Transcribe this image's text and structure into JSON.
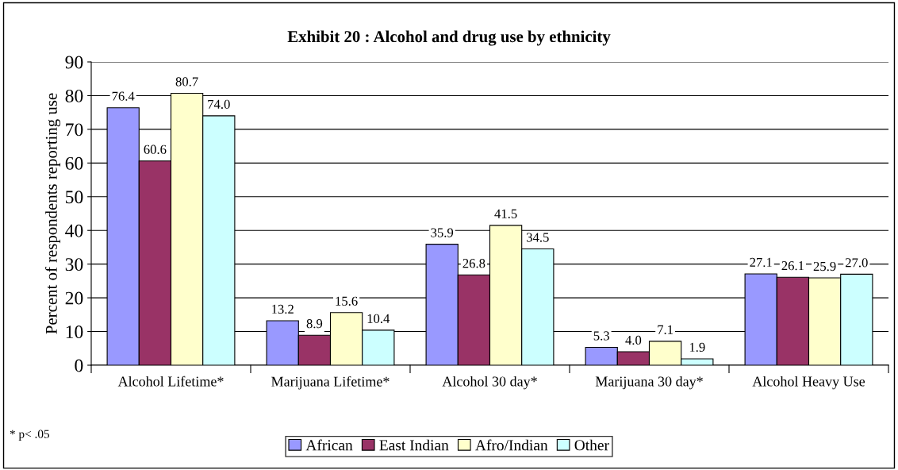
{
  "chart_data": {
    "type": "bar",
    "title": "Exhibit 20 : Alcohol and drug use by ethnicity",
    "ylabel": "Percent of respondents reporting use",
    "categories": [
      "Alcohol Lifetime*",
      "Marijuana Lifetime*",
      "Alcohol 30 day*",
      "Marijuana 30 day*",
      "Alcohol Heavy Use"
    ],
    "series": [
      {
        "name": "African",
        "color": "#9999ff",
        "values": [
          76.4,
          13.2,
          35.9,
          5.3,
          27.1
        ],
        "value_labels": [
          "76.4",
          "13.2",
          "35.9",
          "5.3",
          "27.1"
        ]
      },
      {
        "name": "East Indian",
        "color": "#993366",
        "values": [
          60.6,
          8.9,
          26.8,
          4.0,
          26.1
        ],
        "value_labels": [
          "60.6",
          "8.9",
          "26.8",
          "4.0",
          "26.1"
        ]
      },
      {
        "name": "Afro/Indian",
        "color": "#ffffcc",
        "values": [
          80.7,
          15.6,
          41.5,
          7.1,
          25.9
        ],
        "value_labels": [
          "80.7",
          "15.6",
          "41.5",
          "7.1",
          "25.9"
        ]
      },
      {
        "name": "Other",
        "color": "#ccffff",
        "values": [
          74.0,
          10.4,
          34.5,
          1.9,
          27.0
        ],
        "value_labels": [
          "74.0",
          "10.4",
          "34.5",
          "1.9",
          "27.0"
        ]
      }
    ],
    "ylim": [
      0,
      90
    ],
    "yticks": [
      0,
      10,
      20,
      30,
      40,
      50,
      60,
      70,
      80,
      90
    ],
    "grid": "y",
    "legend": "bottom",
    "annotations": [
      "* p< .05"
    ]
  }
}
